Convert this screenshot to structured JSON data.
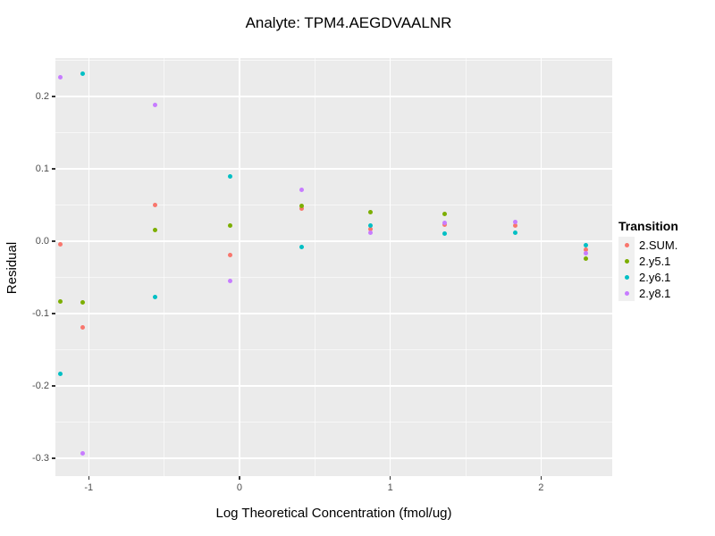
{
  "chart_data": {
    "type": "scatter",
    "title": "Analyte: TPM4.AEGDVAALNR",
    "xlabel": "Log Theoretical Concentration (fmol/ug)",
    "ylabel": "Residual",
    "legend_title": "Transition",
    "panel_bg": "#EBEBEB",
    "grid_color": "#FFFFFF",
    "tick_label_color": "#4D4D4D",
    "x_domain": [
      -1.221,
      2.472
    ],
    "y_domain": [
      -0.325,
      0.2531
    ],
    "x_ticks": [
      {
        "value": -1,
        "label": "-1"
      },
      {
        "value": 0,
        "label": "0"
      },
      {
        "value": 1,
        "label": "1"
      },
      {
        "value": 2,
        "label": "2"
      }
    ],
    "y_ticks": [
      {
        "value": 0.2,
        "label": "0.2"
      },
      {
        "value": 0.1,
        "label": "0.1"
      },
      {
        "value": 0.0,
        "label": "0.0"
      },
      {
        "value": -0.1,
        "label": "-0.1"
      },
      {
        "value": -0.2,
        "label": "-0.2"
      },
      {
        "value": -0.3,
        "label": "-0.3"
      }
    ],
    "x_minor": [
      -0.5,
      0.5,
      1.5
    ],
    "y_minor": [
      0.25,
      0.15,
      0.05,
      -0.05,
      -0.15,
      -0.25
    ],
    "series": [
      {
        "name": "2.SUM.",
        "color": "#F8766D",
        "points": [
          [
            -1.19,
            -0.004
          ],
          [
            -1.04,
            -0.119
          ],
          [
            -0.56,
            0.05
          ],
          [
            -0.06,
            -0.019
          ],
          [
            0.41,
            0.045
          ],
          [
            0.87,
            0.016
          ],
          [
            1.36,
            0.023
          ],
          [
            1.83,
            0.022
          ],
          [
            2.3,
            -0.012
          ]
        ]
      },
      {
        "name": "2.y5.1",
        "color": "#7CAE00",
        "points": [
          [
            -1.19,
            -0.083
          ],
          [
            -1.04,
            -0.085
          ],
          [
            -0.56,
            0.015
          ],
          [
            -0.06,
            0.022
          ],
          [
            0.41,
            0.049
          ],
          [
            0.87,
            0.04
          ],
          [
            1.36,
            0.038
          ],
          [
            2.3,
            -0.024
          ]
        ]
      },
      {
        "name": "2.y6.1",
        "color": "#00BFC4",
        "points": [
          [
            -1.19,
            -0.184
          ],
          [
            -1.04,
            0.232
          ],
          [
            -0.56,
            -0.077
          ],
          [
            -0.06,
            0.09
          ],
          [
            0.41,
            -0.008
          ],
          [
            0.87,
            0.021
          ],
          [
            1.36,
            0.01
          ],
          [
            1.83,
            0.011
          ],
          [
            2.3,
            -0.006
          ]
        ]
      },
      {
        "name": "2.y8.1",
        "color": "#C77CFF",
        "points": [
          [
            -1.19,
            0.227
          ],
          [
            -1.04,
            -0.294
          ],
          [
            -0.56,
            0.188
          ],
          [
            -0.06,
            -0.055
          ],
          [
            0.41,
            0.071
          ],
          [
            0.87,
            0.012
          ],
          [
            1.36,
            0.025
          ],
          [
            1.83,
            0.027
          ],
          [
            2.3,
            -0.017
          ]
        ]
      }
    ]
  }
}
